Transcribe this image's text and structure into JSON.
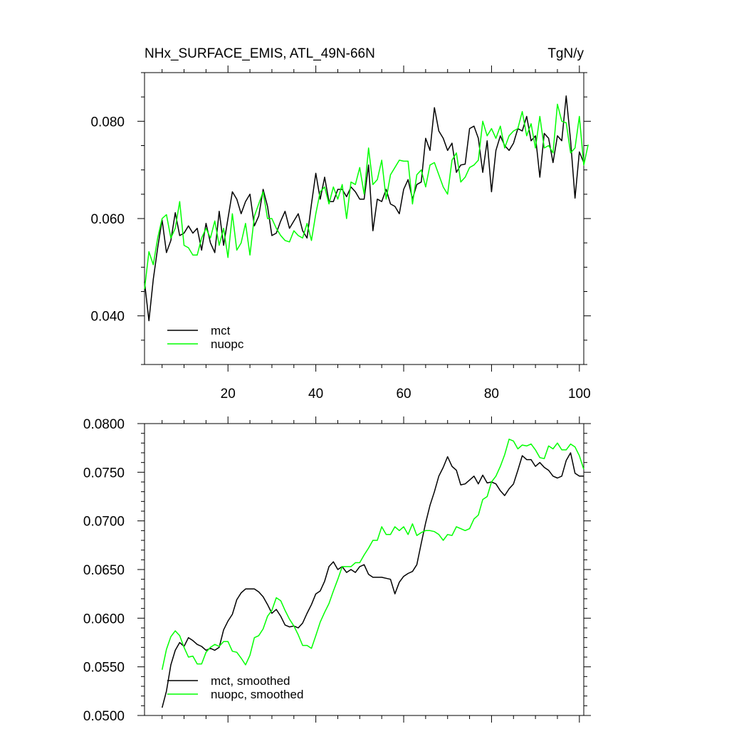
{
  "top_panel": {
    "title": "NHx_SURFACE_EMIS, ATL_49N-66N",
    "units": "TgN/y"
  },
  "chart_data": [
    {
      "type": "line",
      "title": "NHx_SURFACE_EMIS, ATL_49N-66N",
      "units": "TgN/y",
      "xlim": [
        1,
        101
      ],
      "ylim": [
        0.03,
        0.09
      ],
      "x_ticks": [
        20,
        40,
        60,
        80,
        100
      ],
      "x_tick_labels": [
        "20",
        "40",
        "60",
        "80",
        "100"
      ],
      "y_ticks": [
        0.04,
        0.06,
        0.08
      ],
      "y_tick_labels": [
        "0.040",
        "0.060",
        "0.080"
      ],
      "legend_position": "bottom-left",
      "series": [
        {
          "name": "mct",
          "color": "#000000",
          "x_start": 1,
          "values": [
            0.047,
            0.039,
            0.0475,
            0.054,
            0.0597,
            0.053,
            0.0555,
            0.0612,
            0.0565,
            0.057,
            0.0585,
            0.057,
            0.058,
            0.0535,
            0.059,
            0.055,
            0.053,
            0.0615,
            0.0545,
            0.06,
            0.0655,
            0.064,
            0.061,
            0.0635,
            0.065,
            0.0585,
            0.0605,
            0.066,
            0.0625,
            0.0565,
            0.057,
            0.0595,
            0.0615,
            0.058,
            0.0595,
            0.061,
            0.0575,
            0.056,
            0.063,
            0.0693,
            0.064,
            0.0685,
            0.0635,
            0.0635,
            0.066,
            0.066,
            0.0645,
            0.0665,
            0.0655,
            0.064,
            0.064,
            0.071,
            0.0575,
            0.064,
            0.0635,
            0.066,
            0.063,
            0.0625,
            0.061,
            0.066,
            0.068,
            0.064,
            0.067,
            0.0675,
            0.0765,
            0.074,
            0.0828,
            0.078,
            0.0765,
            0.074,
            0.0755,
            0.0695,
            0.071,
            0.0712,
            0.0785,
            0.079,
            0.0765,
            0.0695,
            0.076,
            0.0655,
            0.074,
            0.077,
            0.075,
            0.074,
            0.0755,
            0.0785,
            0.078,
            0.081,
            0.076,
            0.077,
            0.0685,
            0.0775,
            0.0765,
            0.0715,
            0.077,
            0.076,
            0.0852,
            0.076,
            0.0642,
            0.0737,
            0.0715
          ]
        },
        {
          "name": "nuopc",
          "color": "#00ff00",
          "x_start": 1,
          "values": [
            0.0455,
            0.0532,
            0.0505,
            0.056,
            0.06,
            0.0608,
            0.056,
            0.058,
            0.0635,
            0.0545,
            0.054,
            0.0525,
            0.0525,
            0.056,
            0.058,
            0.056,
            0.0595,
            0.0545,
            0.058,
            0.052,
            0.061,
            0.0535,
            0.055,
            0.059,
            0.0525,
            0.0605,
            0.063,
            0.0655,
            0.06,
            0.06,
            0.058,
            0.0565,
            0.0555,
            0.0552,
            0.0575,
            0.0565,
            0.056,
            0.059,
            0.0555,
            0.061,
            0.0655,
            0.0665,
            0.063,
            0.0665,
            0.064,
            0.067,
            0.06,
            0.0675,
            0.067,
            0.0705,
            0.065,
            0.0745,
            0.067,
            0.068,
            0.072,
            0.064,
            0.069,
            0.0705,
            0.072,
            0.0718,
            0.0718,
            0.063,
            0.069,
            0.07,
            0.0665,
            0.071,
            0.0715,
            0.069,
            0.0665,
            0.065,
            0.072,
            0.0735,
            0.0675,
            0.0685,
            0.0705,
            0.071,
            0.072,
            0.08,
            0.077,
            0.0785,
            0.0765,
            0.079,
            0.0745,
            0.077,
            0.078,
            0.0785,
            0.082,
            0.077,
            0.0795,
            0.0745,
            0.081,
            0.0745,
            0.075,
            0.0735,
            0.0835,
            0.08,
            0.0797,
            0.0735,
            0.0745,
            0.081,
            0.071,
            0.0752
          ]
        }
      ]
    },
    {
      "type": "line",
      "xlim": [
        1,
        101
      ],
      "ylim": [
        0.05,
        0.08
      ],
      "x_ticks": [
        20,
        40,
        60,
        80,
        100
      ],
      "y_ticks": [
        0.05,
        0.055,
        0.06,
        0.065,
        0.07,
        0.075,
        0.08
      ],
      "y_tick_labels": [
        "0.0500",
        "0.0550",
        "0.0600",
        "0.0650",
        "0.0700",
        "0.0750",
        "0.0800"
      ],
      "legend_position": "bottom-left",
      "series": [
        {
          "name": "mct, smoothed",
          "color": "#000000",
          "x_start": 5,
          "values": [
            0.0508,
            0.0525,
            0.0552,
            0.0567,
            0.0575,
            0.0571,
            0.058,
            0.0577,
            0.0573,
            0.0571,
            0.0567,
            0.0569,
            0.0567,
            0.057,
            0.0588,
            0.0597,
            0.0604,
            0.0619,
            0.0626,
            0.063,
            0.063,
            0.063,
            0.0627,
            0.0622,
            0.0614,
            0.0605,
            0.0609,
            0.0602,
            0.0593,
            0.0591,
            0.0592,
            0.059,
            0.0595,
            0.0605,
            0.0614,
            0.0625,
            0.0628,
            0.0638,
            0.0653,
            0.0658,
            0.065,
            0.0653,
            0.0647,
            0.065,
            0.0647,
            0.0653,
            0.0655,
            0.0645,
            0.0642,
            0.0642,
            0.0642,
            0.0641,
            0.064,
            0.0625,
            0.0637,
            0.0643,
            0.0646,
            0.0648,
            0.0655,
            0.0677,
            0.0698,
            0.0716,
            0.073,
            0.0746,
            0.0755,
            0.0766,
            0.0756,
            0.0752,
            0.0737,
            0.0738,
            0.0742,
            0.0746,
            0.0738,
            0.0747,
            0.0739,
            0.074,
            0.0738,
            0.0731,
            0.0726,
            0.0733,
            0.0738,
            0.0752,
            0.0767,
            0.0763,
            0.0763,
            0.0756,
            0.076,
            0.0755,
            0.0752,
            0.0746,
            0.0744,
            0.0746,
            0.0762,
            0.077,
            0.0749,
            0.0746,
            0.0746
          ]
        },
        {
          "name": "nuopc, smoothed",
          "color": "#00ff00",
          "x_start": 5,
          "values": [
            0.0547,
            0.0568,
            0.0581,
            0.0587,
            0.0582,
            0.057,
            0.056,
            0.0561,
            0.0553,
            0.0553,
            0.0565,
            0.057,
            0.0573,
            0.0571,
            0.0576,
            0.0576,
            0.0566,
            0.0565,
            0.0559,
            0.0552,
            0.0562,
            0.058,
            0.0582,
            0.0589,
            0.0602,
            0.0608,
            0.0621,
            0.0618,
            0.0608,
            0.0599,
            0.0592,
            0.0583,
            0.0572,
            0.0572,
            0.0569,
            0.0582,
            0.0596,
            0.0606,
            0.0615,
            0.0628,
            0.064,
            0.0653,
            0.0653,
            0.0653,
            0.0657,
            0.0657,
            0.0665,
            0.0672,
            0.068,
            0.068,
            0.0694,
            0.0686,
            0.0686,
            0.0694,
            0.069,
            0.0694,
            0.0686,
            0.0697,
            0.0685,
            0.0688,
            0.069,
            0.069,
            0.0689,
            0.0686,
            0.068,
            0.0686,
            0.0685,
            0.0694,
            0.0692,
            0.069,
            0.0692,
            0.0702,
            0.0706,
            0.0722,
            0.0725,
            0.074,
            0.0746,
            0.0756,
            0.0768,
            0.0784,
            0.0782,
            0.0774,
            0.0778,
            0.0777,
            0.0779,
            0.0773,
            0.0765,
            0.0764,
            0.0777,
            0.0774,
            0.078,
            0.0773,
            0.0773,
            0.0779,
            0.0776,
            0.0767,
            0.0753
          ]
        }
      ]
    }
  ]
}
